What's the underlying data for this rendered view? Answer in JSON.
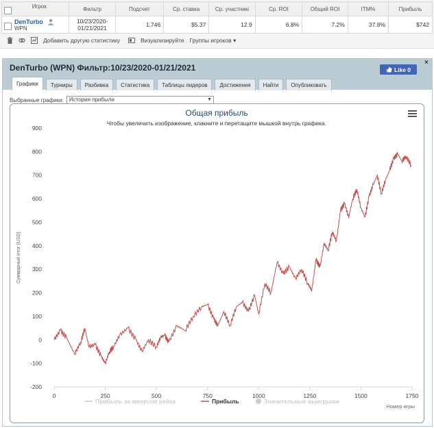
{
  "stats_table": {
    "headers": [
      "Игрок",
      "Фильтр",
      "Подсчет",
      "Ср. ставка",
      "Ср. участникі",
      "Ср. ROI",
      "Общий ROI",
      "ITM%",
      "Прибыль"
    ],
    "row": {
      "player_name": "DenTurbo",
      "network": "WPN",
      "filter": "10/23/2020-01/21/2021",
      "count": "1,746",
      "avg_stake": "$5.37",
      "avg_entrants": "12.9",
      "avg_roi": "6.8%",
      "total_roi": "7.2%",
      "itm": "37.8%",
      "profit": "$742"
    }
  },
  "toolbar": {
    "add_stat": "Добавить другую статистику",
    "visualize": "Визуализируйте",
    "groups": "Группы игроков"
  },
  "panel": {
    "title": "DenTurbo (WPN) Фильтр:10/23/2020-01/21/2021",
    "like_label": "Like 0",
    "tabs": [
      "Графики",
      "Турниры",
      "Разбивка",
      "Статистика",
      "Таблицы лидеров",
      "Достижения",
      "Найти",
      "Опубликовать"
    ],
    "active_tab": 0,
    "chart_select_label": "Выбранные графики:",
    "chart_select_value": "История прибыли"
  },
  "colors": {
    "profit_line": "#c0504d",
    "header_bg": "#bcccd5",
    "like_bg": "#4267b2"
  },
  "chart_data": {
    "type": "line",
    "title": "Общая прибыль",
    "subtitle": "Чтобы увеличить изображение, кликните и перетащите мышкой внутрь графика.",
    "xlabel": "Номер игры",
    "ylabel": "Суммарный итог (USD)",
    "xlim": [
      0,
      1750
    ],
    "ylim": [
      -200,
      900
    ],
    "x_ticks": [
      0,
      250,
      500,
      750,
      1000,
      1250,
      1500,
      1750
    ],
    "y_ticks": [
      -200,
      -100,
      0,
      100,
      200,
      300,
      400,
      500,
      600,
      700,
      800,
      900
    ],
    "legend": [
      {
        "name": "Прибыль за минусом рейка",
        "visible": false
      },
      {
        "name": "Прибыль",
        "visible": true
      },
      {
        "name": "Значительные выигрыши",
        "visible": false
      }
    ],
    "legend_position": "bottom",
    "series": [
      {
        "name": "Прибыль",
        "x": [
          0,
          30,
          60,
          100,
          130,
          150,
          170,
          200,
          230,
          250,
          270,
          290,
          320,
          360,
          400,
          430,
          460,
          500,
          520,
          540,
          560,
          600,
          640,
          680,
          720,
          750,
          780,
          800,
          830,
          860,
          890,
          920,
          950,
          980,
          1000,
          1030,
          1060,
          1090,
          1120,
          1150,
          1180,
          1210,
          1240,
          1260,
          1280,
          1300,
          1320,
          1340,
          1360,
          1380,
          1400,
          1420,
          1440,
          1460,
          1480,
          1500,
          1520,
          1540,
          1560,
          1580,
          1600,
          1620,
          1640,
          1660,
          1680,
          1700,
          1720,
          1746
        ],
        "values": [
          0,
          40,
          10,
          -60,
          -10,
          50,
          -30,
          -20,
          -70,
          -100,
          -50,
          -30,
          20,
          50,
          0,
          -50,
          0,
          -30,
          10,
          20,
          -10,
          60,
          40,
          100,
          140,
          150,
          90,
          60,
          120,
          60,
          140,
          160,
          120,
          190,
          110,
          240,
          200,
          330,
          280,
          310,
          260,
          300,
          240,
          210,
          340,
          310,
          410,
          380,
          460,
          420,
          550,
          580,
          520,
          600,
          640,
          560,
          520,
          610,
          660,
          700,
          620,
          680,
          720,
          770,
          790,
          760,
          780,
          742
        ]
      }
    ]
  }
}
